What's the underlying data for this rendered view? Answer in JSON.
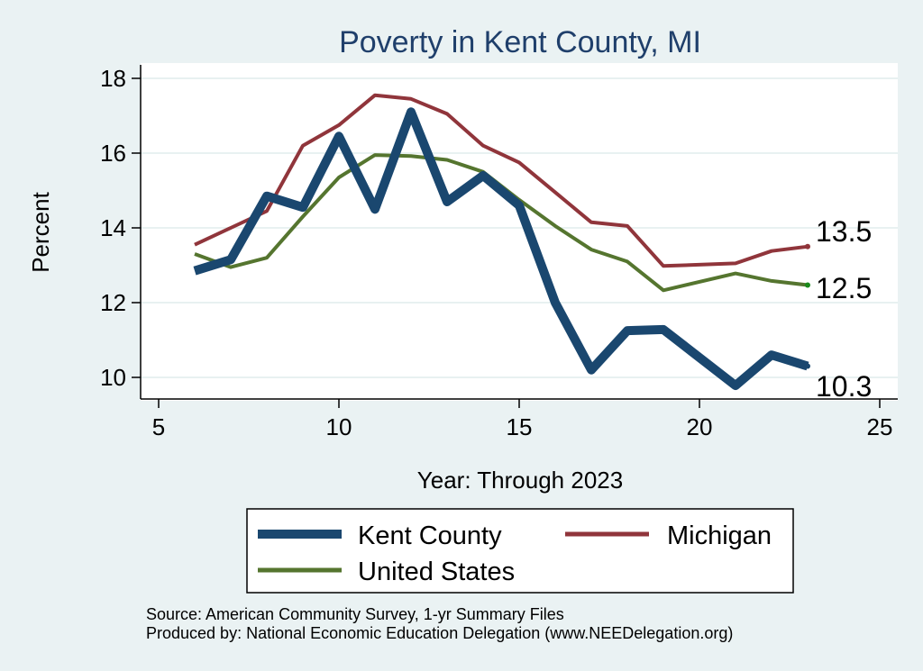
{
  "chart_data": {
    "type": "line",
    "title": "Poverty in Kent County, MI",
    "xlabel": "Year: Through 2023",
    "ylabel": "Percent",
    "xlim": [
      5,
      25
    ],
    "ylim": [
      9.4,
      18.3
    ],
    "xticks": [
      5,
      10,
      15,
      20,
      25
    ],
    "yticks": [
      10,
      12,
      14,
      16,
      18
    ],
    "grid": true,
    "series": [
      {
        "name": "Kent County",
        "color": "#1a476f",
        "end_label": "10.3",
        "x": [
          6,
          7,
          8,
          9,
          10,
          11,
          12,
          13,
          14,
          15,
          16,
          17,
          18,
          19,
          21,
          22,
          23
        ],
        "values": [
          12.85,
          13.15,
          14.85,
          14.55,
          16.45,
          14.5,
          17.1,
          14.7,
          15.4,
          14.6,
          12.0,
          10.2,
          11.25,
          11.28,
          9.78,
          10.6,
          10.3
        ]
      },
      {
        "name": "Michigan",
        "color": "#90353b",
        "end_label": "13.5",
        "x": [
          6,
          7,
          8,
          9,
          10,
          11,
          12,
          13,
          14,
          15,
          16,
          17,
          18,
          19,
          21,
          22,
          23
        ],
        "values": [
          13.55,
          14.0,
          14.45,
          16.2,
          16.75,
          17.55,
          17.45,
          17.05,
          16.2,
          15.75,
          14.95,
          14.15,
          14.05,
          12.98,
          13.05,
          13.38,
          13.5
        ]
      },
      {
        "name": "United States",
        "color": "#55752f",
        "end_label": "12.5",
        "x": [
          6,
          7,
          8,
          9,
          10,
          11,
          12,
          13,
          14,
          15,
          16,
          17,
          18,
          19,
          21,
          22,
          23
        ],
        "values": [
          13.3,
          12.95,
          13.2,
          14.3,
          15.35,
          15.95,
          15.92,
          15.82,
          15.5,
          14.75,
          14.05,
          13.42,
          13.1,
          12.33,
          12.78,
          12.58,
          12.47
        ]
      }
    ],
    "legend": {
      "placement": "bottom"
    }
  },
  "footer": {
    "source": "Source: American Community Survey, 1-yr Summary Files",
    "producer": "Produced by: National Economic Education Delegation (www.NEEDelegation.org)"
  }
}
